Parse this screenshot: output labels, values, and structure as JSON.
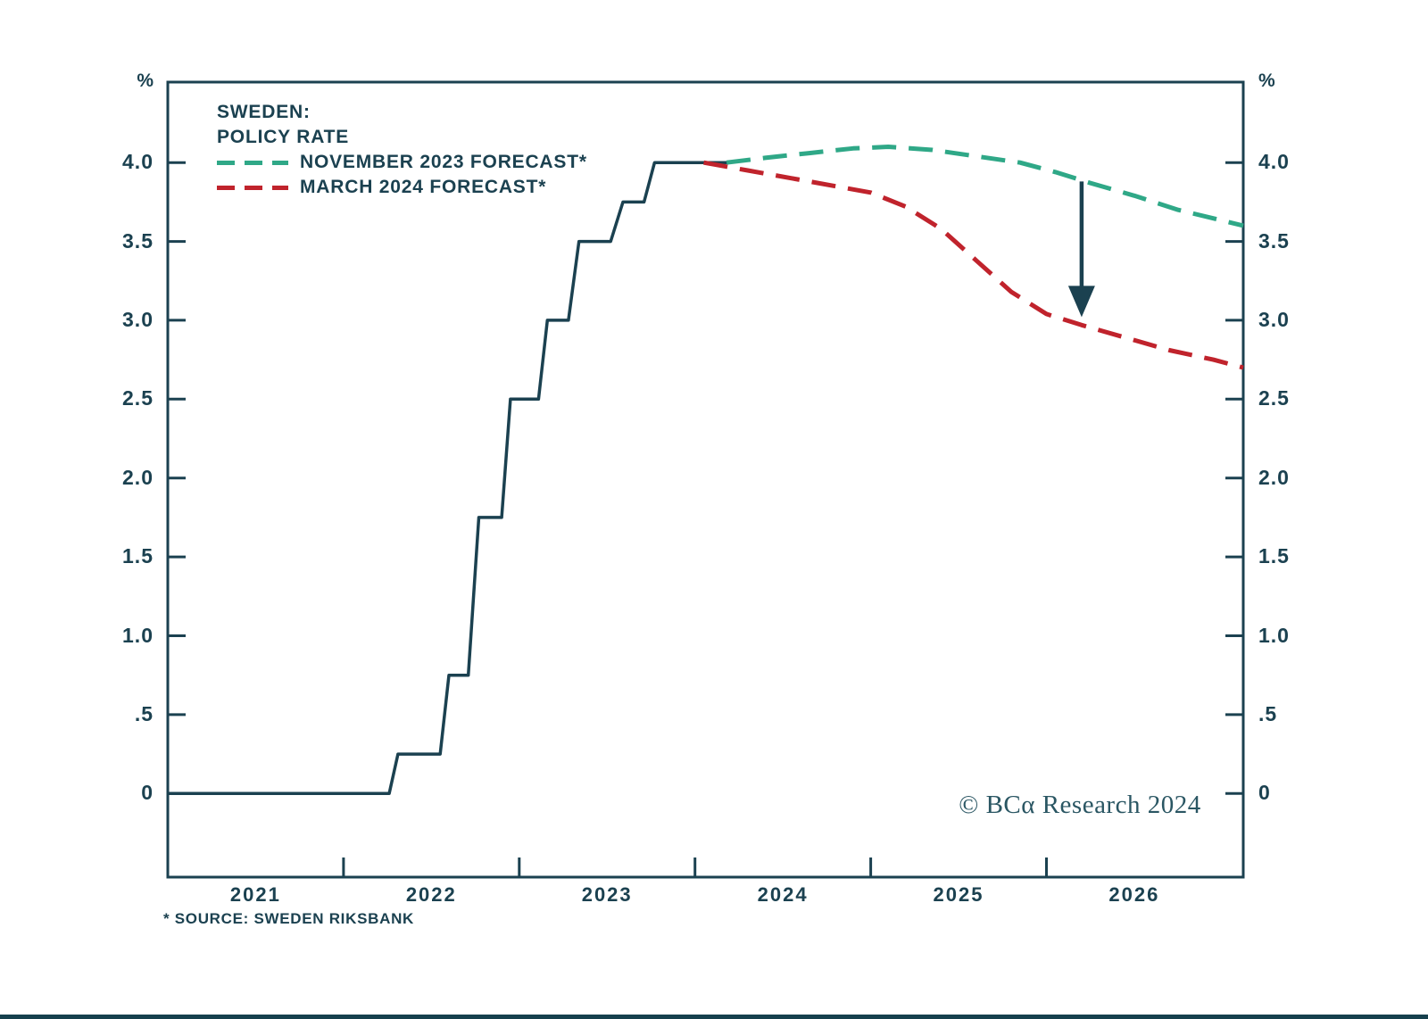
{
  "chart": {
    "title_line1": "SWEDEN:",
    "title_line2": "POLICY RATE",
    "unit_label": "%",
    "legend": [
      {
        "label": "NOVEMBER 2023 FORECAST*",
        "color": "#2fa887"
      },
      {
        "label": "MARCH 2024 FORECAST*",
        "color": "#c0232c"
      }
    ],
    "copyright": "© BCα Research 2024",
    "footnote": "* SOURCE: SWEDEN RIKSBANK",
    "colors": {
      "axis": "#1b4150",
      "historical_line": "#1b4150",
      "november_2023_forecast": "#2fa887",
      "march_2024_forecast": "#c0232c",
      "arrow": "#1b4150",
      "background": "#ffffff"
    }
  },
  "chart_data": {
    "type": "line",
    "title": "SWEDEN: POLICY RATE",
    "unit": "%",
    "x_domain": [
      2021.0,
      2027.12
    ],
    "ylim": [
      -0.53,
      4.51
    ],
    "grid": false,
    "legend_position": "top-left",
    "y_ticks": [
      0,
      0.5,
      1.0,
      1.5,
      2.0,
      2.5,
      3.0,
      3.5,
      4.0
    ],
    "y_tick_labels": [
      "0",
      ".5",
      "1.0",
      "1.5",
      "2.0",
      "2.5",
      "3.0",
      "3.5",
      "4.0"
    ],
    "x_tick_years": [
      2022,
      2023,
      2024,
      2025,
      2026
    ],
    "x_year_labels": [
      "2021",
      "2022",
      "2023",
      "2024",
      "2025",
      "2026"
    ],
    "series": [
      {
        "name": "POLICY RATE (actual)",
        "style": "solid",
        "color": "#1b4150",
        "points": [
          [
            2021.0,
            0
          ],
          [
            2022.26,
            0
          ],
          [
            2022.31,
            0.25
          ],
          [
            2022.55,
            0.25
          ],
          [
            2022.6,
            0.75
          ],
          [
            2022.71,
            0.75
          ],
          [
            2022.77,
            1.75
          ],
          [
            2022.9,
            1.75
          ],
          [
            2022.95,
            2.5
          ],
          [
            2023.11,
            2.5
          ],
          [
            2023.16,
            3.0
          ],
          [
            2023.28,
            3.0
          ],
          [
            2023.34,
            3.5
          ],
          [
            2023.52,
            3.5
          ],
          [
            2023.59,
            3.75
          ],
          [
            2023.71,
            3.75
          ],
          [
            2023.77,
            4.0
          ],
          [
            2024.2,
            4.0
          ]
        ]
      },
      {
        "name": "NOVEMBER 2023 FORECAST",
        "style": "dashed",
        "color": "#2fa887",
        "points": [
          [
            2024.18,
            4.0
          ],
          [
            2024.4,
            4.03
          ],
          [
            2024.65,
            4.06
          ],
          [
            2024.9,
            4.09
          ],
          [
            2025.1,
            4.1
          ],
          [
            2025.35,
            4.08
          ],
          [
            2025.6,
            4.04
          ],
          [
            2025.85,
            4.0
          ],
          [
            2026.05,
            3.94
          ],
          [
            2026.25,
            3.87
          ],
          [
            2026.5,
            3.79
          ],
          [
            2026.75,
            3.7
          ],
          [
            2027.12,
            3.6
          ]
        ]
      },
      {
        "name": "MARCH 2024 FORECAST",
        "style": "dashed",
        "color": "#c0232c",
        "points": [
          [
            2024.05,
            4.0
          ],
          [
            2024.3,
            3.95
          ],
          [
            2024.55,
            3.9
          ],
          [
            2024.8,
            3.85
          ],
          [
            2025.0,
            3.81
          ],
          [
            2025.2,
            3.72
          ],
          [
            2025.4,
            3.58
          ],
          [
            2025.6,
            3.38
          ],
          [
            2025.8,
            3.18
          ],
          [
            2026.0,
            3.04
          ],
          [
            2026.2,
            2.97
          ],
          [
            2026.45,
            2.89
          ],
          [
            2026.7,
            2.81
          ],
          [
            2026.95,
            2.75
          ],
          [
            2027.12,
            2.7
          ]
        ]
      }
    ],
    "annotation_arrow": {
      "x": 2026.2,
      "from": 3.88,
      "to": 3.02
    }
  }
}
